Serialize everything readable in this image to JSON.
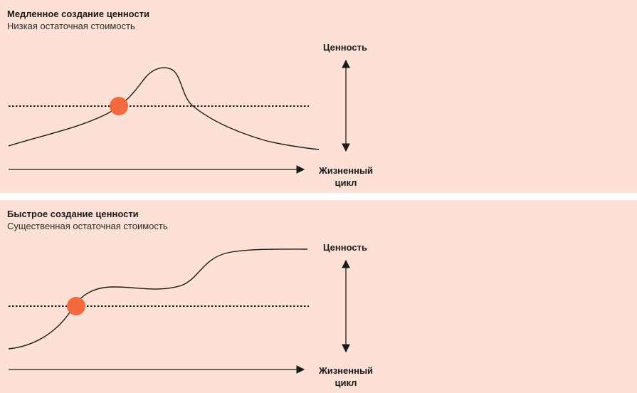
{
  "panels": [
    {
      "title": "Медленное создание ценности",
      "subtitle": "Низкая остаточная стоимость",
      "value_axis_label": "Ценность",
      "lifecycle_axis_label_line1": "Жизненный",
      "lifecycle_axis_label_line2": "цикл"
    },
    {
      "title": "Быстрое создание ценности",
      "subtitle": "Существенная остаточная стоимость",
      "value_axis_label": "Ценность",
      "lifecycle_axis_label_line1": "Жизненный",
      "lifecycle_axis_label_line2": "цикл"
    }
  ],
  "colors": {
    "panel_background": "#fde1d6",
    "marker": "#f26a3d",
    "line": "#1a1a1a"
  }
}
